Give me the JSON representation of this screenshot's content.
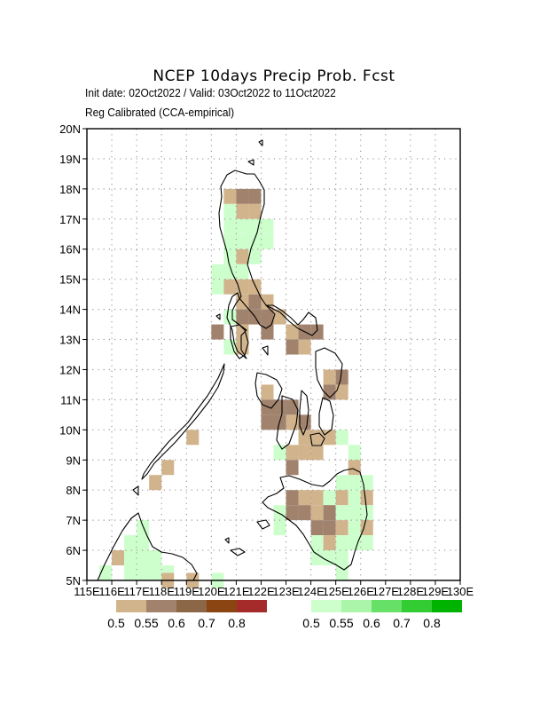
{
  "header": {
    "title": "NCEP 10days Precip Prob. Fcst",
    "line1": "Init date: 02Oct2022 / Valid: 03Oct2022 to 11Oct2022",
    "line2": "Reg Calibrated (CCA-empirical)"
  },
  "axes": {
    "lon_labels": [
      "115E",
      "116E",
      "117E",
      "118E",
      "119E",
      "120E",
      "121E",
      "122E",
      "123E",
      "124E",
      "125E",
      "126E",
      "127E",
      "128E",
      "129E",
      "130E"
    ],
    "lat_labels": [
      "5N",
      "6N",
      "7N",
      "8N",
      "9N",
      "10N",
      "11N",
      "12N",
      "13N",
      "14N",
      "15N",
      "16N",
      "17N",
      "18N",
      "19N",
      "20N"
    ],
    "lon_range": [
      115,
      130
    ],
    "lat_range": [
      5,
      20
    ],
    "grid": "dotted"
  },
  "legend": {
    "dry": {
      "colors": [
        "#d2b48c",
        "#a0826d",
        "#8b6748",
        "#8b4513",
        "#a52a2a"
      ],
      "labels": [
        "0.5",
        "0.55",
        "0.6",
        "0.7",
        "0.8"
      ]
    },
    "wet": {
      "colors": [
        "#ccffcc",
        "#aaf5aa",
        "#66e066",
        "#33cc33",
        "#00b300"
      ],
      "labels": [
        "0.5",
        "0.55",
        "0.6",
        "0.7",
        "0.8"
      ]
    }
  },
  "chart_data": {
    "type": "heatmap",
    "grid_step_deg": 0.5,
    "cell_value_meaning": "probability category index into legend colors; positive = above-normal (green), negative = below-normal (brown)",
    "cells": [
      [
        120.5,
        17.75,
        -1
      ],
      [
        121.0,
        17.75,
        -2
      ],
      [
        121.5,
        17.75,
        -2
      ],
      [
        121.0,
        17.25,
        -1
      ],
      [
        121.5,
        17.25,
        -1
      ],
      [
        120.5,
        17.25,
        1
      ],
      [
        120.5,
        16.75,
        1
      ],
      [
        121.0,
        16.75,
        1
      ],
      [
        121.5,
        16.75,
        1
      ],
      [
        122.0,
        16.75,
        1
      ],
      [
        120.5,
        16.25,
        1
      ],
      [
        121.0,
        16.25,
        1
      ],
      [
        121.5,
        16.25,
        1
      ],
      [
        122.0,
        16.25,
        1
      ],
      [
        120.5,
        15.75,
        1
      ],
      [
        121.0,
        15.75,
        -1
      ],
      [
        121.5,
        15.75,
        1
      ],
      [
        120.0,
        15.25,
        1
      ],
      [
        120.5,
        15.25,
        1
      ],
      [
        121.0,
        15.25,
        1
      ],
      [
        120.0,
        14.75,
        1
      ],
      [
        120.5,
        14.75,
        -1
      ],
      [
        121.0,
        14.75,
        -1
      ],
      [
        121.0,
        14.25,
        -1
      ],
      [
        121.5,
        14.25,
        -2
      ],
      [
        122.0,
        14.25,
        -1
      ],
      [
        121.5,
        14.75,
        -1
      ],
      [
        120.5,
        13.75,
        1
      ],
      [
        121.0,
        13.75,
        -2
      ],
      [
        121.5,
        13.75,
        -2
      ],
      [
        122.0,
        13.75,
        -2
      ],
      [
        122.5,
        13.75,
        -1
      ],
      [
        120.0,
        13.25,
        -2
      ],
      [
        121.0,
        13.25,
        -1
      ],
      [
        122.0,
        13.25,
        -2
      ],
      [
        123.0,
        13.25,
        -1
      ],
      [
        123.5,
        13.25,
        -2
      ],
      [
        124.0,
        13.25,
        -2
      ],
      [
        120.5,
        12.75,
        1
      ],
      [
        121.0,
        12.75,
        -1
      ],
      [
        123.0,
        12.75,
        -2
      ],
      [
        123.5,
        12.75,
        -1
      ],
      [
        124.5,
        11.75,
        -1
      ],
      [
        125.0,
        11.75,
        -2
      ],
      [
        124.5,
        11.25,
        -2
      ],
      [
        125.0,
        11.25,
        -1
      ],
      [
        122.0,
        11.25,
        -1
      ],
      [
        122.0,
        10.75,
        -2
      ],
      [
        122.5,
        10.75,
        -2
      ],
      [
        123.0,
        10.75,
        -2
      ],
      [
        122.0,
        10.25,
        -2
      ],
      [
        122.5,
        10.25,
        -2
      ],
      [
        123.0,
        10.25,
        -1
      ],
      [
        123.5,
        10.25,
        -2
      ],
      [
        123.5,
        9.75,
        -1
      ],
      [
        124.0,
        9.75,
        -1
      ],
      [
        124.5,
        9.75,
        -1
      ],
      [
        125.0,
        9.75,
        1
      ],
      [
        122.5,
        9.25,
        1
      ],
      [
        123.0,
        9.25,
        -1
      ],
      [
        123.5,
        9.25,
        -1
      ],
      [
        124.0,
        9.25,
        -1
      ],
      [
        125.5,
        9.25,
        1
      ],
      [
        119.0,
        9.75,
        -1
      ],
      [
        118.0,
        8.75,
        -1
      ],
      [
        117.5,
        8.25,
        -1
      ],
      [
        123.0,
        8.75,
        -2
      ],
      [
        125.5,
        8.75,
        -1
      ],
      [
        125.0,
        8.25,
        1
      ],
      [
        125.5,
        8.25,
        1
      ],
      [
        126.0,
        8.25,
        1
      ],
      [
        123.0,
        7.75,
        -2
      ],
      [
        123.5,
        7.75,
        -1
      ],
      [
        124.0,
        7.75,
        -1
      ],
      [
        124.5,
        7.75,
        1
      ],
      [
        125.0,
        7.75,
        -1
      ],
      [
        125.5,
        7.75,
        1
      ],
      [
        126.0,
        7.75,
        -1
      ],
      [
        122.5,
        7.25,
        1
      ],
      [
        123.0,
        7.25,
        -2
      ],
      [
        123.5,
        7.25,
        -2
      ],
      [
        124.0,
        7.25,
        -1
      ],
      [
        124.5,
        7.25,
        -2
      ],
      [
        125.0,
        7.25,
        1
      ],
      [
        125.5,
        7.25,
        1
      ],
      [
        126.0,
        7.25,
        1
      ],
      [
        122.5,
        6.75,
        1
      ],
      [
        124.0,
        6.75,
        -2
      ],
      [
        124.5,
        6.75,
        -2
      ],
      [
        125.0,
        6.75,
        -1
      ],
      [
        125.5,
        6.75,
        1
      ],
      [
        126.0,
        6.75,
        -1
      ],
      [
        124.0,
        6.25,
        1
      ],
      [
        124.5,
        6.25,
        -1
      ],
      [
        125.0,
        6.25,
        1
      ],
      [
        125.5,
        6.25,
        1
      ],
      [
        126.0,
        6.25,
        1
      ],
      [
        124.0,
        5.75,
        1
      ],
      [
        124.5,
        5.75,
        1
      ],
      [
        125.0,
        5.75,
        1
      ],
      [
        125.0,
        5.25,
        1
      ],
      [
        117.0,
        6.75,
        1
      ],
      [
        116.5,
        6.25,
        1
      ],
      [
        117.0,
        6.25,
        1
      ],
      [
        116.0,
        5.75,
        -1
      ],
      [
        116.5,
        5.75,
        1
      ],
      [
        117.0,
        5.75,
        1
      ],
      [
        117.5,
        5.75,
        1
      ],
      [
        116.5,
        5.25,
        1
      ],
      [
        117.0,
        5.25,
        1
      ],
      [
        117.5,
        5.25,
        1
      ],
      [
        118.0,
        5.25,
        1
      ],
      [
        115.5,
        5.25,
        1
      ],
      [
        118.0,
        5.0,
        -1
      ],
      [
        119.0,
        5.0,
        -1
      ],
      [
        120.0,
        5.0,
        1
      ]
    ]
  }
}
